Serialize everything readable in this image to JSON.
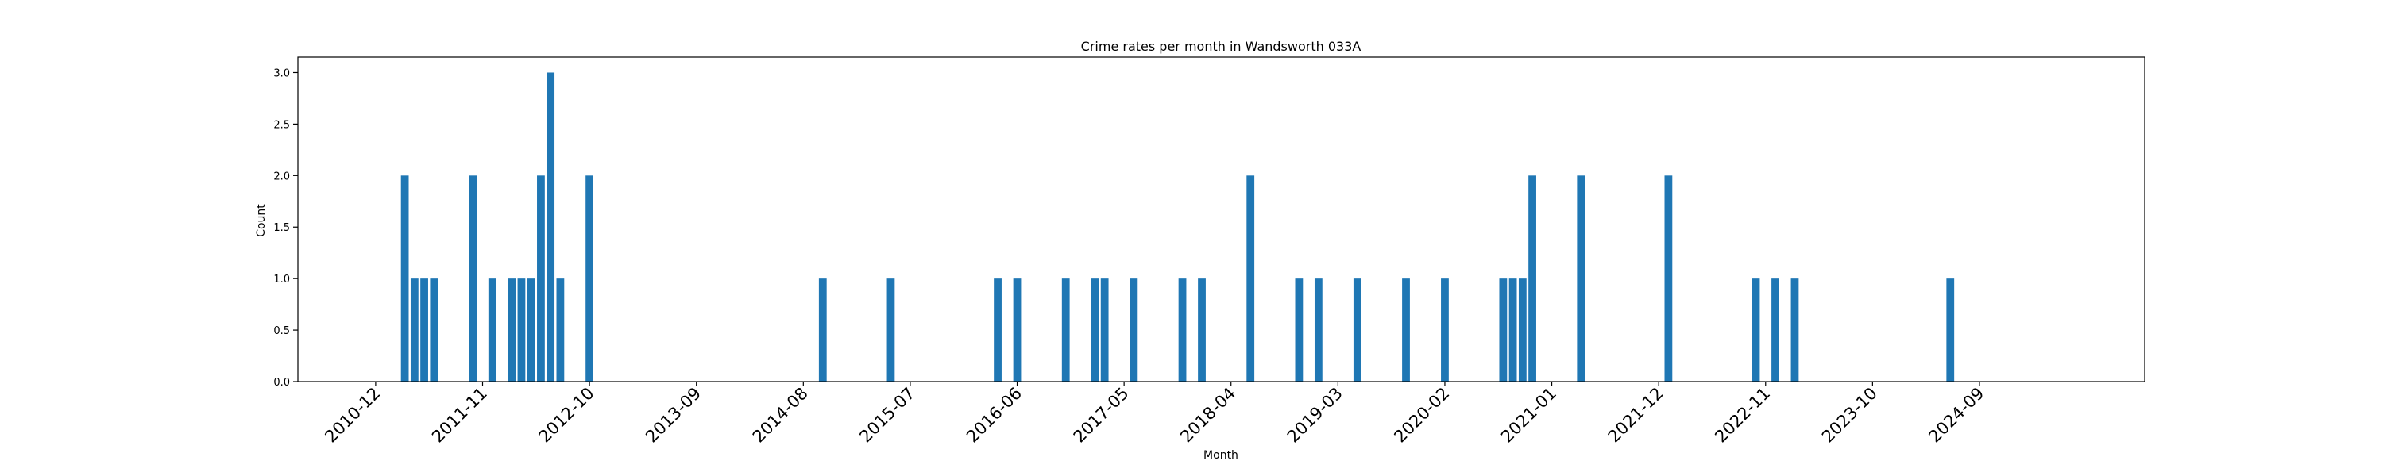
{
  "chart_data": {
    "type": "bar",
    "title": "Crime rates per month in Wandsworth 033A",
    "xlabel": "Month",
    "ylabel": "Count",
    "ylim": [
      0,
      3.15
    ],
    "xlim": [
      "2010-04",
      "2026-02"
    ],
    "yticks": [
      "0.0",
      "0.5",
      "1.0",
      "1.5",
      "2.0",
      "2.5",
      "3.0"
    ],
    "xticks": [
      "2010-12",
      "2011-11",
      "2012-10",
      "2013-09",
      "2014-08",
      "2015-07",
      "2016-06",
      "2017-05",
      "2018-04",
      "2019-03",
      "2020-02",
      "2021-01",
      "2021-12",
      "2022-11",
      "2023-10",
      "2024-09"
    ],
    "bar_color": "#1f77b4",
    "grid": false,
    "legend": "none",
    "x": [
      "2011-03",
      "2011-04",
      "2011-05",
      "2011-06",
      "2011-10",
      "2011-12",
      "2012-02",
      "2012-03",
      "2012-04",
      "2012-05",
      "2012-06",
      "2012-07",
      "2012-10",
      "2014-10",
      "2015-05",
      "2016-04",
      "2016-06",
      "2016-11",
      "2017-02",
      "2017-03",
      "2017-06",
      "2017-11",
      "2018-01",
      "2018-06",
      "2018-11",
      "2019-01",
      "2019-05",
      "2019-10",
      "2020-02",
      "2020-08",
      "2020-09",
      "2020-10",
      "2020-11",
      "2021-04",
      "2022-01",
      "2022-10",
      "2022-12",
      "2023-02",
      "2024-06"
    ],
    "values": [
      2,
      1,
      1,
      1,
      2,
      1,
      1,
      1,
      1,
      2,
      3,
      1,
      2,
      1,
      1,
      1,
      1,
      1,
      1,
      1,
      1,
      1,
      1,
      2,
      1,
      1,
      1,
      1,
      1,
      1,
      1,
      1,
      2,
      2,
      2,
      1,
      1,
      1,
      1
    ]
  }
}
